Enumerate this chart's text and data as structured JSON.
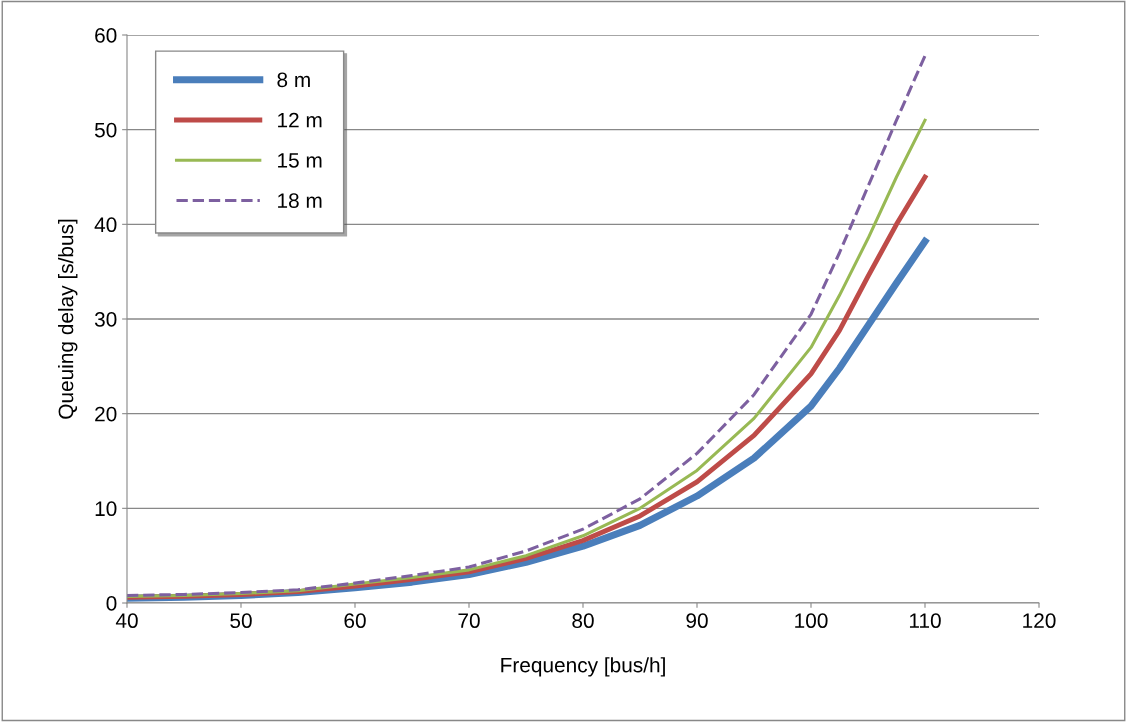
{
  "chart_data": {
    "type": "line",
    "xlabel": "Frequency [bus/h]",
    "ylabel": "Queuing delay [s/bus]",
    "x": [
      40,
      45,
      50,
      55,
      60,
      65,
      70,
      75,
      80,
      85,
      90,
      95,
      100,
      102.5,
      105,
      107.5,
      110
    ],
    "series": [
      {
        "name": "8 m",
        "color": "#4a7ebb",
        "line_style": "solid",
        "values": [
          0.5,
          0.6,
          0.8,
          1.1,
          1.6,
          2.2,
          3.0,
          4.3,
          6.0,
          8.2,
          11.3,
          15.3,
          20.8,
          24.8,
          29.3,
          33.8,
          38.2
        ]
      },
      {
        "name": "12 m",
        "color": "#be4b48",
        "line_style": "solid",
        "values": [
          0.6,
          0.7,
          0.9,
          1.2,
          1.8,
          2.5,
          3.3,
          4.7,
          6.6,
          9.2,
          12.8,
          17.7,
          24.2,
          28.8,
          34.5,
          40.0,
          45.0
        ]
      },
      {
        "name": "15 m",
        "color": "#98b954",
        "line_style": "solid",
        "values": [
          0.7,
          0.8,
          1.0,
          1.3,
          2.0,
          2.7,
          3.5,
          5.0,
          7.1,
          10.0,
          14.0,
          19.5,
          27.0,
          32.5,
          38.5,
          45.0,
          51.0
        ]
      },
      {
        "name": "18 m",
        "color": "#7d60a0",
        "line_style": "dashed",
        "values": [
          0.8,
          0.9,
          1.1,
          1.4,
          2.1,
          2.9,
          3.8,
          5.5,
          7.8,
          11.0,
          15.8,
          22.0,
          30.5,
          37.0,
          44.0,
          51.0,
          57.8
        ]
      }
    ],
    "xlim": [
      40,
      120
    ],
    "xticks": [
      40,
      50,
      60,
      70,
      80,
      90,
      100,
      110,
      120
    ],
    "ylim": [
      0,
      60
    ],
    "yticks": [
      0,
      10,
      20,
      30,
      40,
      50,
      60
    ],
    "grid": "y",
    "legend": "top left",
    "marker": "none"
  }
}
